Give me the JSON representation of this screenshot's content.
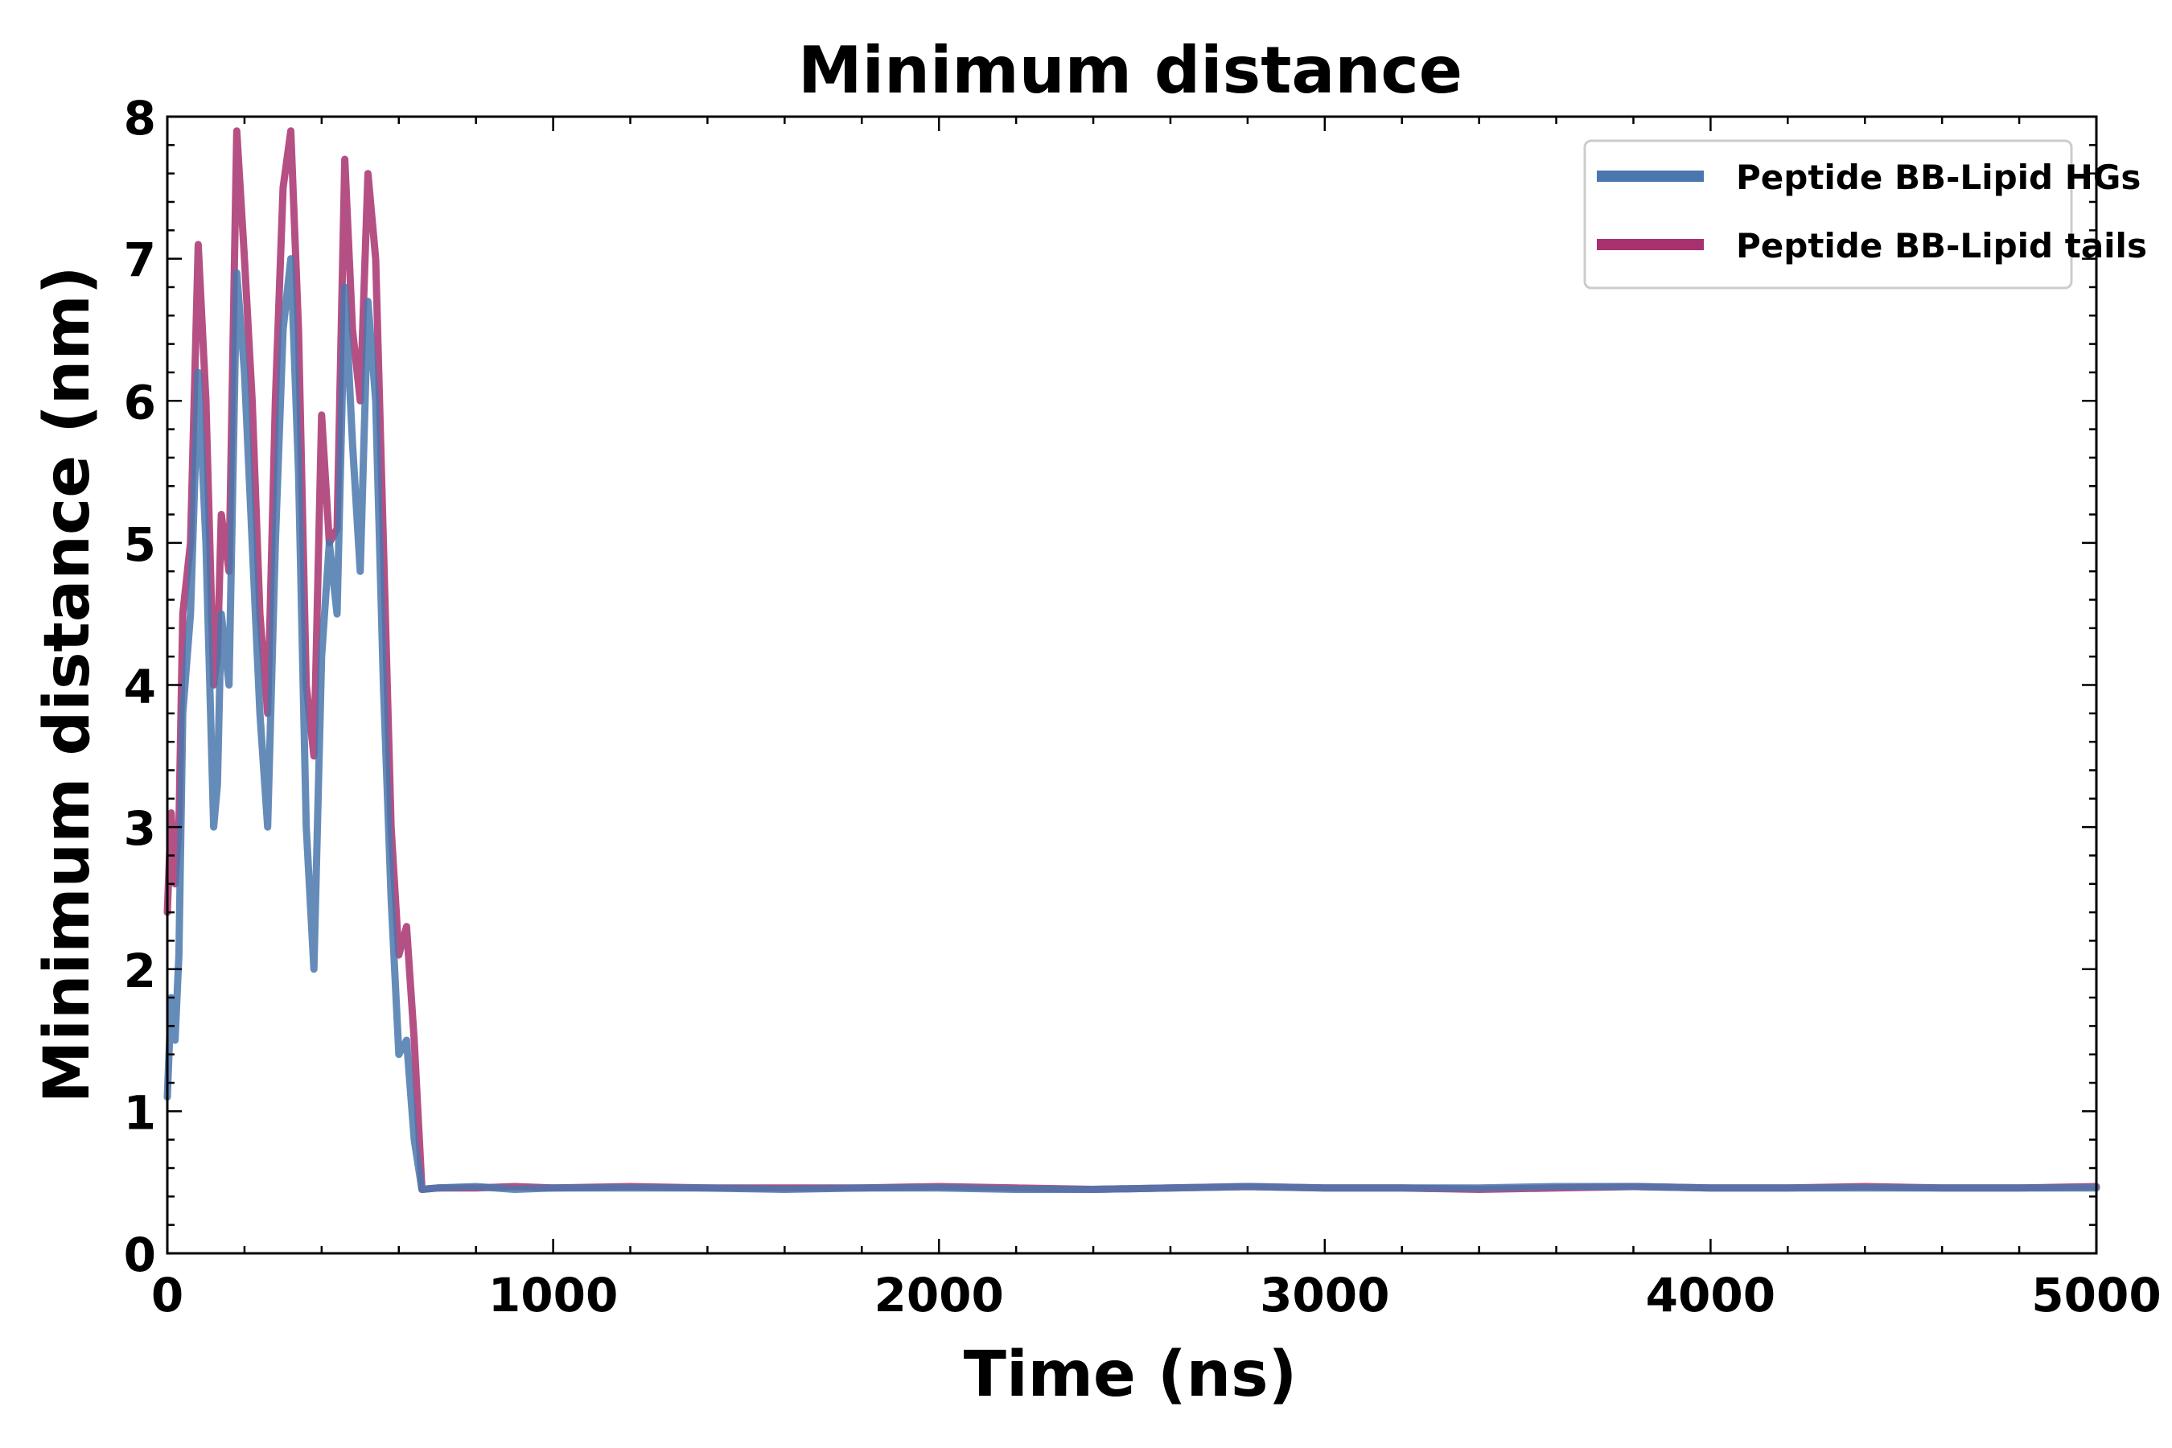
{
  "chart_data": {
    "type": "line",
    "title": "Minimum distance",
    "xlabel": "Time (ns)",
    "ylabel": "Minimum distance (nm)",
    "xlim": [
      0,
      5000
    ],
    "ylim": [
      0,
      8
    ],
    "xticks": [
      0,
      1000,
      2000,
      3000,
      4000,
      5000
    ],
    "xtick_labels": [
      "0",
      "1000",
      "2000",
      "3000",
      "4000",
      "5000"
    ],
    "yticks": [
      0,
      1,
      2,
      3,
      4,
      5,
      6,
      7,
      8
    ],
    "ytick_labels": [
      "0",
      "1",
      "2",
      "3",
      "4",
      "5",
      "6",
      "7",
      "8"
    ],
    "grid": false,
    "legend_position": "top-right",
    "series": [
      {
        "name": "Peptide BB-Lipid HGs",
        "color": "#4a77ad",
        "x": [
          0,
          10,
          20,
          30,
          40,
          60,
          80,
          100,
          120,
          130,
          140,
          160,
          180,
          200,
          220,
          240,
          260,
          280,
          300,
          320,
          340,
          360,
          380,
          400,
          420,
          440,
          460,
          480,
          500,
          520,
          540,
          560,
          580,
          600,
          620,
          640,
          660,
          700,
          800,
          900,
          1000,
          1200,
          1400,
          1600,
          1800,
          2000,
          2200,
          2400,
          2600,
          2800,
          3000,
          3200,
          3400,
          3600,
          3800,
          4000,
          4200,
          4400,
          4600,
          4800,
          5000
        ],
        "values": [
          1.1,
          1.8,
          1.5,
          2.1,
          3.8,
          4.5,
          6.2,
          5.0,
          3.0,
          3.3,
          4.5,
          4.0,
          6.9,
          6.2,
          5.0,
          3.8,
          3.0,
          5.0,
          6.5,
          7.0,
          5.5,
          3.0,
          2.0,
          4.2,
          5.0,
          4.5,
          6.8,
          5.7,
          4.8,
          6.7,
          6.0,
          4.0,
          2.5,
          1.4,
          1.5,
          0.8,
          0.45,
          0.46,
          0.47,
          0.45,
          0.46,
          0.46,
          0.46,
          0.45,
          0.46,
          0.46,
          0.45,
          0.45,
          0.46,
          0.47,
          0.46,
          0.46,
          0.46,
          0.47,
          0.47,
          0.46,
          0.46,
          0.46,
          0.46,
          0.46,
          0.46
        ]
      },
      {
        "name": "Peptide BB-Lipid tails",
        "color": "#a8316f",
        "x": [
          0,
          10,
          20,
          30,
          40,
          60,
          80,
          100,
          120,
          130,
          140,
          160,
          180,
          200,
          220,
          240,
          260,
          280,
          300,
          320,
          340,
          360,
          380,
          400,
          420,
          440,
          460,
          480,
          500,
          520,
          540,
          560,
          580,
          600,
          620,
          640,
          660,
          700,
          800,
          900,
          1000,
          1200,
          1400,
          1600,
          1800,
          2000,
          2200,
          2400,
          2600,
          2800,
          3000,
          3200,
          3400,
          3600,
          3800,
          4000,
          4200,
          4400,
          4600,
          4800,
          5000
        ],
        "values": [
          2.4,
          3.1,
          2.6,
          3.0,
          4.5,
          5.0,
          7.1,
          6.0,
          4.0,
          4.2,
          5.2,
          4.8,
          7.9,
          7.0,
          6.0,
          4.5,
          3.8,
          6.0,
          7.5,
          7.9,
          6.5,
          4.0,
          3.5,
          5.9,
          5.0,
          5.1,
          7.7,
          6.5,
          6.0,
          7.6,
          7.0,
          5.0,
          3.0,
          2.1,
          2.3,
          1.5,
          0.45,
          0.46,
          0.46,
          0.47,
          0.46,
          0.47,
          0.46,
          0.46,
          0.46,
          0.47,
          0.46,
          0.45,
          0.46,
          0.47,
          0.46,
          0.46,
          0.45,
          0.46,
          0.47,
          0.46,
          0.46,
          0.47,
          0.46,
          0.46,
          0.47
        ]
      }
    ]
  }
}
